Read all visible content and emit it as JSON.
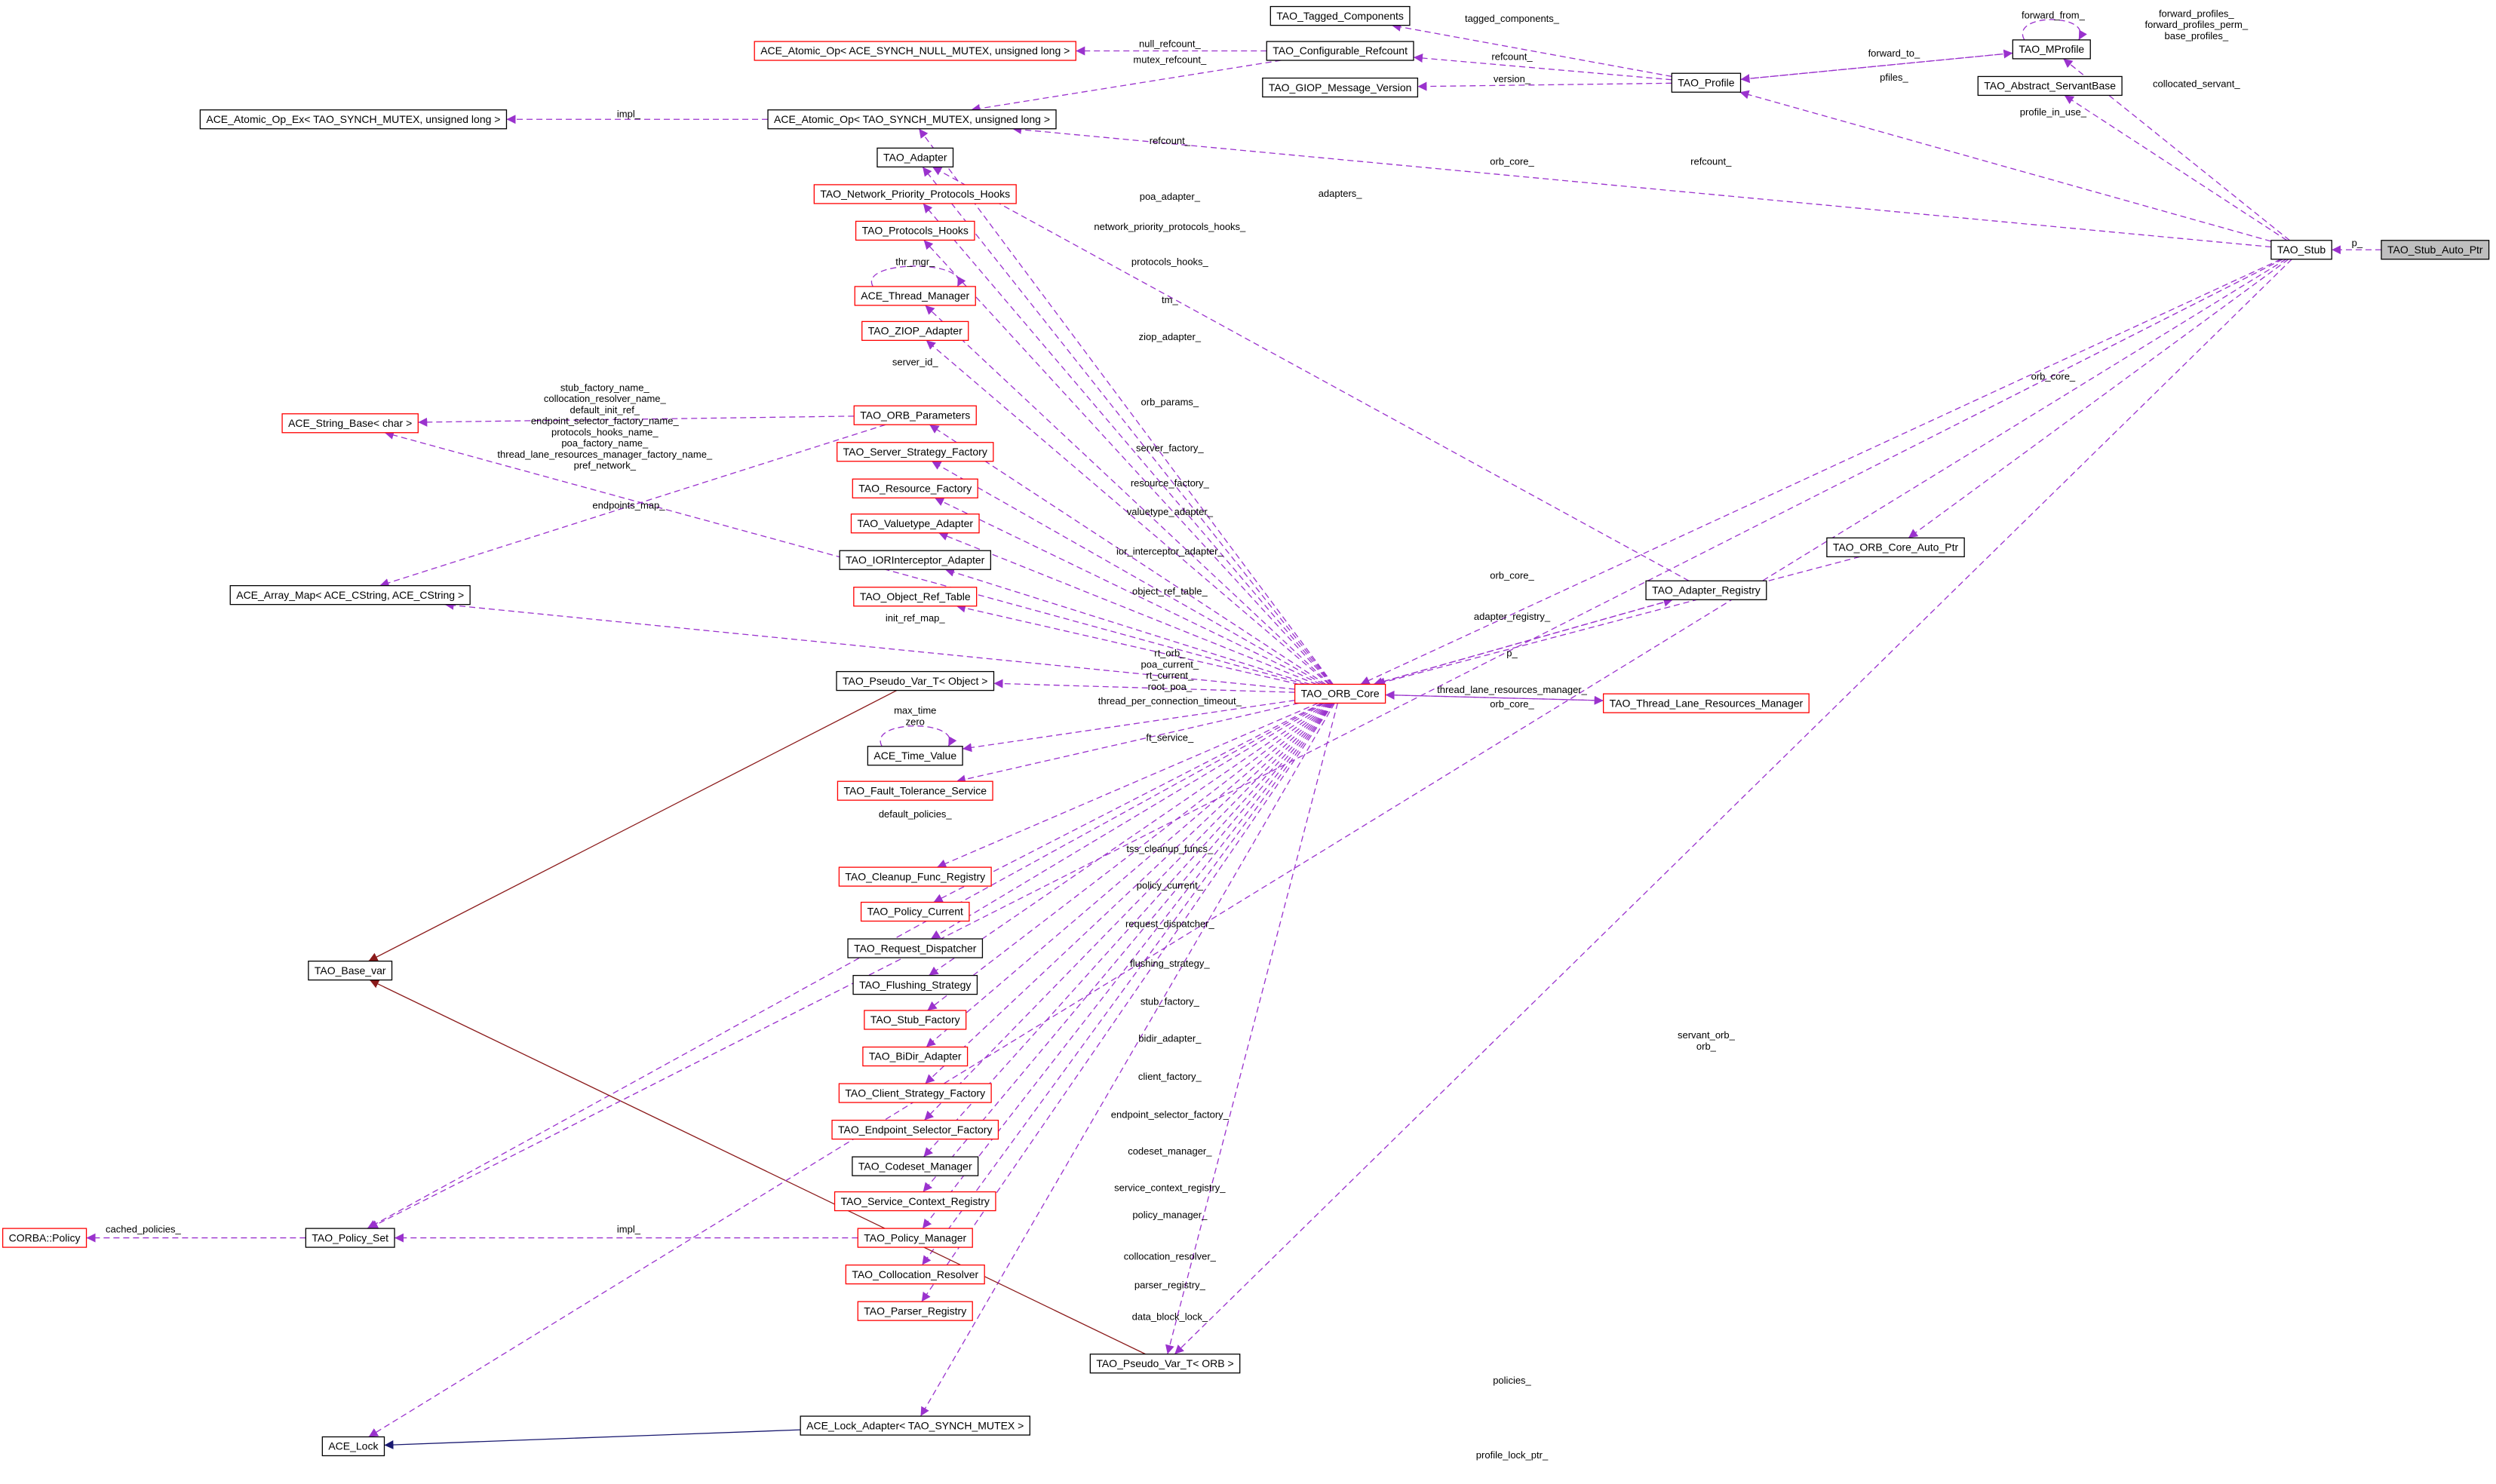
{
  "nodes": [
    {
      "label": "TAO_Stub_Auto_Ptr",
      "color": "#000000",
      "fill": "#bfbfbf"
    },
    {
      "label": "TAO_Stub",
      "color": "#000000"
    },
    {
      "label": "TAO_Tagged_Components",
      "color": "#000000"
    },
    {
      "label": "ACE_Atomic_Op< ACE_SYNCH_NULL_MUTEX, unsigned long >",
      "color": "#ff0000"
    },
    {
      "label": "TAO_Configurable_Refcount",
      "color": "#000000"
    },
    {
      "label": "TAO_Profile",
      "color": "#000000"
    },
    {
      "label": "TAO_MProfile",
      "color": "#000000"
    },
    {
      "label": "TAO_Abstract_ServantBase",
      "color": "#000000"
    },
    {
      "label": "TAO_GIOP_Message_Version",
      "color": "#000000"
    },
    {
      "label": "ACE_Atomic_Op_Ex< TAO_SYNCH_MUTEX, unsigned long >",
      "color": "#000000"
    },
    {
      "label": "ACE_Atomic_Op< TAO_SYNCH_MUTEX, unsigned long >",
      "color": "#000000"
    },
    {
      "label": "TAO_Adapter",
      "color": "#000000"
    },
    {
      "label": "TAO_Network_Priority_Protocols_Hooks",
      "color": "#ff0000"
    },
    {
      "label": "TAO_Protocols_Hooks",
      "color": "#ff0000"
    },
    {
      "label": "ACE_Thread_Manager",
      "color": "#ff0000"
    },
    {
      "label": "TAO_ZIOP_Adapter",
      "color": "#ff0000"
    },
    {
      "label": "ACE_String_Base< char >",
      "color": "#ff0000"
    },
    {
      "label": "TAO_ORB_Parameters",
      "color": "#ff0000"
    },
    {
      "label": "TAO_Server_Strategy_Factory",
      "color": "#ff0000"
    },
    {
      "label": "TAO_Resource_Factory",
      "color": "#ff0000"
    },
    {
      "label": "TAO_Valuetype_Adapter",
      "color": "#ff0000"
    },
    {
      "label": "TAO_IORInterceptor_Adapter",
      "color": "#000000"
    },
    {
      "label": "ACE_Array_Map< ACE_CString, ACE_CString >",
      "color": "#000000"
    },
    {
      "label": "TAO_Object_Ref_Table",
      "color": "#ff0000"
    },
    {
      "label": "TAO_Adapter_Registry",
      "color": "#000000"
    },
    {
      "label": "TAO_ORB_Core_Auto_Ptr",
      "color": "#000000"
    },
    {
      "label": "TAO_Pseudo_Var_T< Object >",
      "color": "#000000"
    },
    {
      "label": "TAO_ORB_Core",
      "color": "#ff0000"
    },
    {
      "label": "TAO_Thread_Lane_Resources_Manager",
      "color": "#ff0000"
    },
    {
      "label": "ACE_Time_Value",
      "color": "#000000"
    },
    {
      "label": "TAO_Fault_Tolerance_Service",
      "color": "#ff0000"
    },
    {
      "label": "TAO_Base_var",
      "color": "#000000"
    },
    {
      "label": "TAO_Cleanup_Func_Registry",
      "color": "#ff0000"
    },
    {
      "label": "TAO_Policy_Current",
      "color": "#ff0000"
    },
    {
      "label": "TAO_Request_Dispatcher",
      "color": "#000000"
    },
    {
      "label": "TAO_Flushing_Strategy",
      "color": "#000000"
    },
    {
      "label": "TAO_Stub_Factory",
      "color": "#ff0000"
    },
    {
      "label": "TAO_BiDir_Adapter",
      "color": "#ff0000"
    },
    {
      "label": "TAO_Client_Strategy_Factory",
      "color": "#ff0000"
    },
    {
      "label": "TAO_Endpoint_Selector_Factory",
      "color": "#ff0000"
    },
    {
      "label": "TAO_Codeset_Manager",
      "color": "#000000"
    },
    {
      "label": "TAO_Service_Context_Registry",
      "color": "#ff0000"
    },
    {
      "label": "CORBA::Policy",
      "color": "#ff0000"
    },
    {
      "label": "TAO_Policy_Set",
      "color": "#000000"
    },
    {
      "label": "TAO_Policy_Manager",
      "color": "#ff0000"
    },
    {
      "label": "TAO_Collocation_Resolver",
      "color": "#ff0000"
    },
    {
      "label": "TAO_Parser_Registry",
      "color": "#ff0000"
    },
    {
      "label": "TAO_Pseudo_Var_T< ORB >",
      "color": "#000000"
    },
    {
      "label": "ACE_Lock_Adapter< TAO_SYNCH_MUTEX >",
      "color": "#000000"
    },
    {
      "label": "ACE_Lock",
      "color": "#000000"
    }
  ],
  "edges": [
    {
      "from": 0,
      "to": 1,
      "label": [
        "p_"
      ],
      "style": "usage",
      "color": "#9a32cd"
    },
    {
      "from": 5,
      "to": 2,
      "label": [
        "tagged_components_"
      ],
      "style": "usage",
      "color": "#9a32cd"
    },
    {
      "from": 4,
      "to": 3,
      "label": [
        "null_refcount_"
      ],
      "style": "usage",
      "color": "#9a32cd"
    },
    {
      "from": 5,
      "to": 4,
      "label": [
        "refcount_"
      ],
      "style": "usage",
      "color": "#9a32cd"
    },
    {
      "from": 5,
      "to": 6,
      "label": [
        "forward_to_"
      ],
      "style": "usage",
      "color": "#9a32cd"
    },
    {
      "from": 6,
      "to": 6,
      "label": [
        "forward_from_"
      ],
      "style": "usage",
      "color": "#9a32cd"
    },
    {
      "from": 1,
      "to": 6,
      "label": [
        "forward_profiles_",
        "forward_profiles_perm_",
        "base_profiles_"
      ],
      "style": "usage",
      "color": "#9a32cd"
    },
    {
      "from": 1,
      "to": 7,
      "label": [
        "collocated_servant_"
      ],
      "style": "usage",
      "color": "#9a32cd"
    },
    {
      "from": 5,
      "to": 8,
      "label": [
        "version_"
      ],
      "style": "usage",
      "color": "#9a32cd"
    },
    {
      "from": 10,
      "to": 9,
      "label": [
        "impl_"
      ],
      "style": "usage",
      "color": "#9a32cd"
    },
    {
      "from": 4,
      "to": 10,
      "label": [
        "mutex_refcount_"
      ],
      "style": "usage",
      "color": "#9a32cd"
    },
    {
      "from": 6,
      "to": 5,
      "label": [
        "pfiles_"
      ],
      "style": "usage",
      "color": "#9a32cd"
    },
    {
      "from": 1,
      "to": 5,
      "label": [
        "profile_in_use_"
      ],
      "style": "usage",
      "color": "#9a32cd"
    },
    {
      "from": 1,
      "to": 10,
      "label": [
        "refcount_"
      ],
      "style": "usage",
      "color": "#9a32cd"
    },
    {
      "from": 27,
      "to": 10,
      "label": [
        "refcount_"
      ],
      "style": "usage",
      "color": "#9a32cd"
    },
    {
      "from": 24,
      "to": 11,
      "label": [
        "adapters_"
      ],
      "style": "usage",
      "color": "#9a32cd"
    },
    {
      "from": 27,
      "to": 11,
      "label": [
        "poa_adapter_"
      ],
      "style": "usage",
      "color": "#9a32cd"
    },
    {
      "from": 27,
      "to": 12,
      "label": [
        "network_priority_protocols_hooks_"
      ],
      "style": "usage",
      "color": "#9a32cd"
    },
    {
      "from": 27,
      "to": 13,
      "label": [
        "protocols_hooks_"
      ],
      "style": "usage",
      "color": "#9a32cd"
    },
    {
      "from": 14,
      "to": 14,
      "label": [
        "thr_mgr_"
      ],
      "style": "usage",
      "color": "#9a32cd"
    },
    {
      "from": 27,
      "to": 14,
      "label": [
        "tm_"
      ],
      "style": "usage",
      "color": "#9a32cd"
    },
    {
      "from": 27,
      "to": 15,
      "label": [
        "ziop_adapter_"
      ],
      "style": "usage",
      "color": "#9a32cd"
    },
    {
      "from": 27,
      "to": 16,
      "label": [
        "server_id_"
      ],
      "style": "usage",
      "color": "#9a32cd"
    },
    {
      "from": 17,
      "to": 16,
      "label": [
        "stub_factory_name_",
        "collocation_resolver_name_",
        "default_init_ref_",
        "endpoint_selector_factory_name_",
        "protocols_hooks_name_",
        "poa_factory_name_",
        "thread_lane_resources_manager_factory_name_",
        "pref_network_"
      ],
      "style": "usage",
      "color": "#9a32cd"
    },
    {
      "from": 27,
      "to": 17,
      "label": [
        "orb_params_"
      ],
      "style": "usage",
      "color": "#9a32cd"
    },
    {
      "from": 27,
      "to": 18,
      "label": [
        "server_factory_"
      ],
      "style": "usage",
      "color": "#9a32cd"
    },
    {
      "from": 27,
      "to": 19,
      "label": [
        "resource_factory_"
      ],
      "style": "usage",
      "color": "#9a32cd"
    },
    {
      "from": 27,
      "to": 20,
      "label": [
        "valuetype_adapter_"
      ],
      "style": "usage",
      "color": "#9a32cd"
    },
    {
      "from": 27,
      "to": 21,
      "label": [
        "ior_interceptor_adapter_"
      ],
      "style": "usage",
      "color": "#9a32cd"
    },
    {
      "from": 17,
      "to": 22,
      "label": [
        "endpoints_map_"
      ],
      "style": "usage",
      "color": "#9a32cd"
    },
    {
      "from": 27,
      "to": 22,
      "label": [
        "init_ref_map_"
      ],
      "style": "usage",
      "color": "#9a32cd"
    },
    {
      "from": 27,
      "to": 23,
      "label": [
        "object_ref_table_"
      ],
      "style": "usage",
      "color": "#9a32cd"
    },
    {
      "from": 24,
      "to": 27,
      "label": [
        "orb_core_"
      ],
      "style": "usage",
      "color": "#9a32cd"
    },
    {
      "from": 27,
      "to": 24,
      "label": [
        "adapter_registry_"
      ],
      "style": "usage",
      "color": "#9a32cd"
    },
    {
      "from": 1,
      "to": 27,
      "label": [
        "orb_core_"
      ],
      "style": "usage",
      "color": "#9a32cd"
    },
    {
      "from": 25,
      "to": 27,
      "label": [
        "p_"
      ],
      "style": "usage",
      "color": "#9a32cd"
    },
    {
      "from": 1,
      "to": 25,
      "label": [
        "orb_core_"
      ],
      "style": "usage",
      "color": "#9a32cd"
    },
    {
      "from": 27,
      "to": 26,
      "label": [
        "rt_orb_",
        "poa_current_",
        "rt_current_",
        "root_poa_"
      ],
      "style": "usage",
      "color": "#9a32cd"
    },
    {
      "from": 27,
      "to": 28,
      "label": [
        "thread_lane_resources_manager_"
      ],
      "style": "usage",
      "color": "#9a32cd"
    },
    {
      "from": 28,
      "to": 27,
      "label": [
        "orb_core_"
      ],
      "style": "usage",
      "color": "#9a32cd"
    },
    {
      "from": 27,
      "to": 29,
      "label": [
        "thread_per_connection_timeout_"
      ],
      "style": "usage",
      "color": "#9a32cd"
    },
    {
      "from": 29,
      "to": 29,
      "label": [
        "max_time",
        "zero"
      ],
      "style": "usage",
      "color": "#9a32cd"
    },
    {
      "from": 27,
      "to": 30,
      "label": [
        "ft_service_"
      ],
      "style": "usage",
      "color": "#9a32cd"
    },
    {
      "from": 27,
      "to": 43,
      "label": [
        "default_policies_"
      ],
      "style": "usage",
      "color": "#9a32cd"
    },
    {
      "from": 26,
      "to": 31,
      "style": "inheritance",
      "color": "#8b1a1a"
    },
    {
      "from": 27,
      "to": 32,
      "label": [
        "tss_cleanup_funcs_"
      ],
      "style": "usage",
      "color": "#9a32cd"
    },
    {
      "from": 27,
      "to": 33,
      "label": [
        "policy_current_"
      ],
      "style": "usage",
      "color": "#9a32cd"
    },
    {
      "from": 27,
      "to": 34,
      "label": [
        "request_dispatcher_"
      ],
      "style": "usage",
      "color": "#9a32cd"
    },
    {
      "from": 27,
      "to": 35,
      "label": [
        "flushing_strategy_"
      ],
      "style": "usage",
      "color": "#9a32cd"
    },
    {
      "from": 27,
      "to": 36,
      "label": [
        "stub_factory_"
      ],
      "style": "usage",
      "color": "#9a32cd"
    },
    {
      "from": 27,
      "to": 37,
      "label": [
        "bidir_adapter_"
      ],
      "style": "usage",
      "color": "#9a32cd"
    },
    {
      "from": 27,
      "to": 38,
      "label": [
        "client_factory_"
      ],
      "style": "usage",
      "color": "#9a32cd"
    },
    {
      "from": 27,
      "to": 39,
      "label": [
        "endpoint_selector_factory_"
      ],
      "style": "usage",
      "color": "#9a32cd"
    },
    {
      "from": 27,
      "to": 40,
      "label": [
        "codeset_manager_"
      ],
      "style": "usage",
      "color": "#9a32cd"
    },
    {
      "from": 27,
      "to": 41,
      "label": [
        "service_context_registry_"
      ],
      "style": "usage",
      "color": "#9a32cd"
    },
    {
      "from": 27,
      "to": 44,
      "label": [
        "policy_manager_"
      ],
      "style": "usage",
      "color": "#9a32cd"
    },
    {
      "from": 27,
      "to": 45,
      "label": [
        "collocation_resolver_"
      ],
      "style": "usage",
      "color": "#9a32cd"
    },
    {
      "from": 27,
      "to": 46,
      "label": [
        "parser_registry_"
      ],
      "style": "usage",
      "color": "#9a32cd"
    },
    {
      "from": 27,
      "to": 48,
      "label": [
        "data_block_lock_"
      ],
      "style": "usage",
      "color": "#9a32cd"
    },
    {
      "from": 43,
      "to": 42,
      "label": [
        "cached_policies_"
      ],
      "style": "usage",
      "color": "#9a32cd"
    },
    {
      "from": 44,
      "to": 43,
      "label": [
        "impl_"
      ],
      "style": "usage",
      "color": "#9a32cd"
    },
    {
      "from": 1,
      "to": 47,
      "label": [
        "servant_orb_",
        "orb_"
      ],
      "style": "usage",
      "color": "#9a32cd"
    },
    {
      "from": 27,
      "to": 47,
      "style": "usage",
      "color": "#9a32cd"
    },
    {
      "from": 47,
      "to": 31,
      "style": "inheritance",
      "color": "#8b1a1a"
    },
    {
      "from": 1,
      "to": 43,
      "label": [
        "policies_"
      ],
      "style": "usage",
      "color": "#9a32cd"
    },
    {
      "from": 48,
      "to": 49,
      "style": "inheritance",
      "color": "#191970"
    },
    {
      "from": 1,
      "to": 49,
      "label": [
        "profile_lock_ptr_"
      ],
      "style": "usage",
      "color": "#9a32cd"
    }
  ]
}
